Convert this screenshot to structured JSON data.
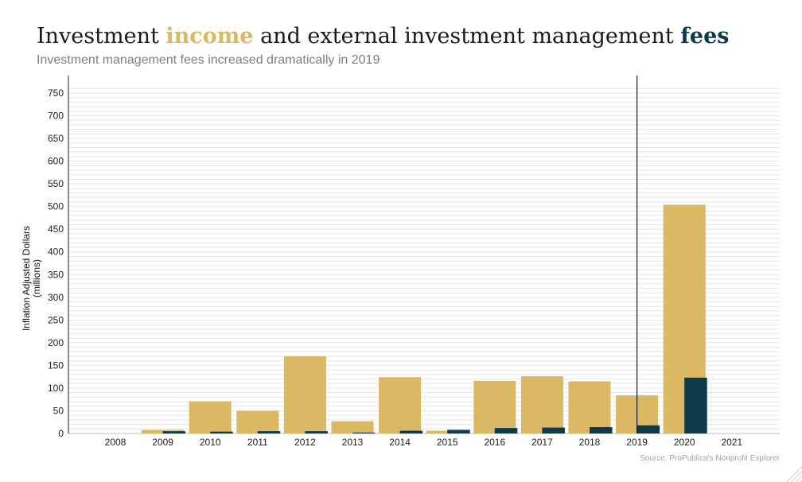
{
  "header": {
    "title_part1": "Investment ",
    "title_income": "income",
    "title_part2": " and external investment management ",
    "title_fees": "fees",
    "subtitle": "Investment management fees increased dramatically in 2019"
  },
  "y_axis_label_line1": "Inflation Adjusted Dollars",
  "y_axis_label_line2": "(millions)",
  "source": "Source: ProPublica's Nonprofit Explorer",
  "colors": {
    "income": "#dbb864",
    "fees": "#0f3a4a",
    "marker": "#1a1a1a",
    "grid": "#e6e6e6"
  },
  "chart_data": {
    "type": "bar",
    "title": "Investment income and external investment management fees",
    "subtitle": "Investment management fees increased dramatically in 2019",
    "ylabel": "Inflation Adjusted Dollars (millions)",
    "xlabel": "",
    "categories": [
      "2008",
      "2009",
      "2010",
      "2011",
      "2012",
      "2013",
      "2014",
      "2015",
      "2016",
      "2017",
      "2018",
      "2019",
      "2020",
      "2021"
    ],
    "series": [
      {
        "name": "income",
        "values": [
          0,
          8,
          71,
          50,
          170,
          27,
          124,
          6,
          116,
          126,
          115,
          84,
          504,
          0
        ]
      },
      {
        "name": "fees",
        "values": [
          0,
          5,
          4,
          5,
          5,
          2,
          6,
          8,
          12,
          13,
          14,
          18,
          123,
          0
        ]
      }
    ],
    "yticks": [
      0,
      50,
      100,
      150,
      200,
      250,
      300,
      350,
      400,
      450,
      500,
      550,
      600,
      650,
      700,
      750
    ],
    "ylim": [
      0,
      760
    ],
    "marker_category": "2019",
    "grid": true,
    "legend": "none"
  }
}
